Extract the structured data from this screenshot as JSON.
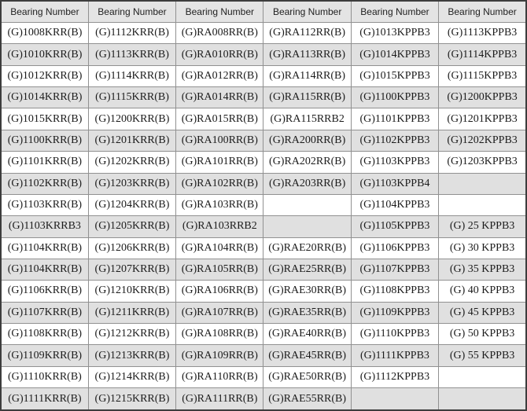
{
  "colors": {
    "header_bg": "#e4e4e4",
    "alt_row_bg": "#e0e0e0",
    "row_bg": "#ffffff",
    "inner_border": "#919191",
    "outer_border": "#3d3d3d",
    "text": "#1c1c1c"
  },
  "table": {
    "columns": [
      "Bearing Number",
      "Bearing Number",
      "Bearing Number",
      "Bearing Number",
      "Bearing Number",
      "Bearing Number"
    ],
    "rows": [
      [
        "(G)1008KRR(B)",
        "(G)1112KRR(B)",
        "(G)RA008RR(B)",
        "(G)RA112RR(B)",
        "(G)1013KPPB3",
        "(G)1113KPPB3"
      ],
      [
        "(G)1010KRR(B)",
        "(G)1113KRR(B)",
        "(G)RA010RR(B)",
        "(G)RA113RR(B)",
        "(G)1014KPPB3",
        "(G)1114KPPB3"
      ],
      [
        "(G)1012KRR(B)",
        "(G)1114KRR(B)",
        "(G)RA012RR(B)",
        "(G)RA114RR(B)",
        "(G)1015KPPB3",
        "(G)1115KPPB3"
      ],
      [
        "(G)1014KRR(B)",
        "(G)1115KRR(B)",
        "(G)RA014RR(B)",
        "(G)RA115RR(B)",
        "(G)1100KPPB3",
        "(G)1200KPPB3"
      ],
      [
        "(G)1015KRR(B)",
        "(G)1200KRR(B)",
        "(G)RA015RR(B)",
        "(G)RA115RRB2",
        "(G)1101KPPB3",
        "(G)1201KPPB3"
      ],
      [
        "(G)1100KRR(B)",
        "(G)1201KRR(B)",
        "(G)RA100RR(B)",
        "(G)RA200RR(B)",
        "(G)1102KPPB3",
        "(G)1202KPPB3"
      ],
      [
        "(G)1101KRR(B)",
        "(G)1202KRR(B)",
        "(G)RA101RR(B)",
        "(G)RA202RR(B)",
        "(G)1103KPPB3",
        "(G)1203KPPB3"
      ],
      [
        "(G)1102KRR(B)",
        "(G)1203KRR(B)",
        "(G)RA102RR(B)",
        "(G)RA203RR(B)",
        "(G)1103KPPB4",
        ""
      ],
      [
        "(G)1103KRR(B)",
        "(G)1204KRR(B)",
        "(G)RA103RR(B)",
        "",
        "(G)1104KPPB3",
        ""
      ],
      [
        "(G)1103KRRB3",
        "(G)1205KRR(B)",
        "(G)RA103RRB2",
        "",
        "(G)1105KPPB3",
        "(G) 25 KPPB3"
      ],
      [
        "(G)1104KRR(B)",
        "(G)1206KRR(B)",
        "(G)RA104RR(B)",
        "(G)RAE20RR(B)",
        "(G)1106KPPB3",
        "(G) 30 KPPB3"
      ],
      [
        "(G)1104KRR(B)",
        "(G)1207KRR(B)",
        "(G)RA105RR(B)",
        "(G)RAE25RR(B)",
        "(G)1107KPPB3",
        "(G) 35 KPPB3"
      ],
      [
        "(G)1106KRR(B)",
        "(G)1210KRR(B)",
        "(G)RA106RR(B)",
        "(G)RAE30RR(B)",
        "(G)1108KPPB3",
        "(G) 40 KPPB3"
      ],
      [
        "(G)1107KRR(B)",
        "(G)1211KRR(B)",
        "(G)RA107RR(B)",
        "(G)RAE35RR(B)",
        "(G)1109KPPB3",
        "(G) 45 KPPB3"
      ],
      [
        "(G)1108KRR(B)",
        "(G)1212KRR(B)",
        "(G)RA108RR(B)",
        "(G)RAE40RR(B)",
        "(G)1110KPPB3",
        "(G) 50 KPPB3"
      ],
      [
        "(G)1109KRR(B)",
        "(G)1213KRR(B)",
        "(G)RA109RR(B)",
        "(G)RAE45RR(B)",
        "(G)1111KPPB3",
        "(G) 55 KPPB3"
      ],
      [
        "(G)1110KRR(B)",
        "(G)1214KRR(B)",
        "(G)RA110RR(B)",
        "(G)RAE50RR(B)",
        "(G)1112KPPB3",
        ""
      ],
      [
        "(G)1111KRR(B)",
        "(G)1215KRR(B)",
        "(G)RA111RR(B)",
        "(G)RAE55RR(B)",
        "",
        ""
      ]
    ]
  }
}
